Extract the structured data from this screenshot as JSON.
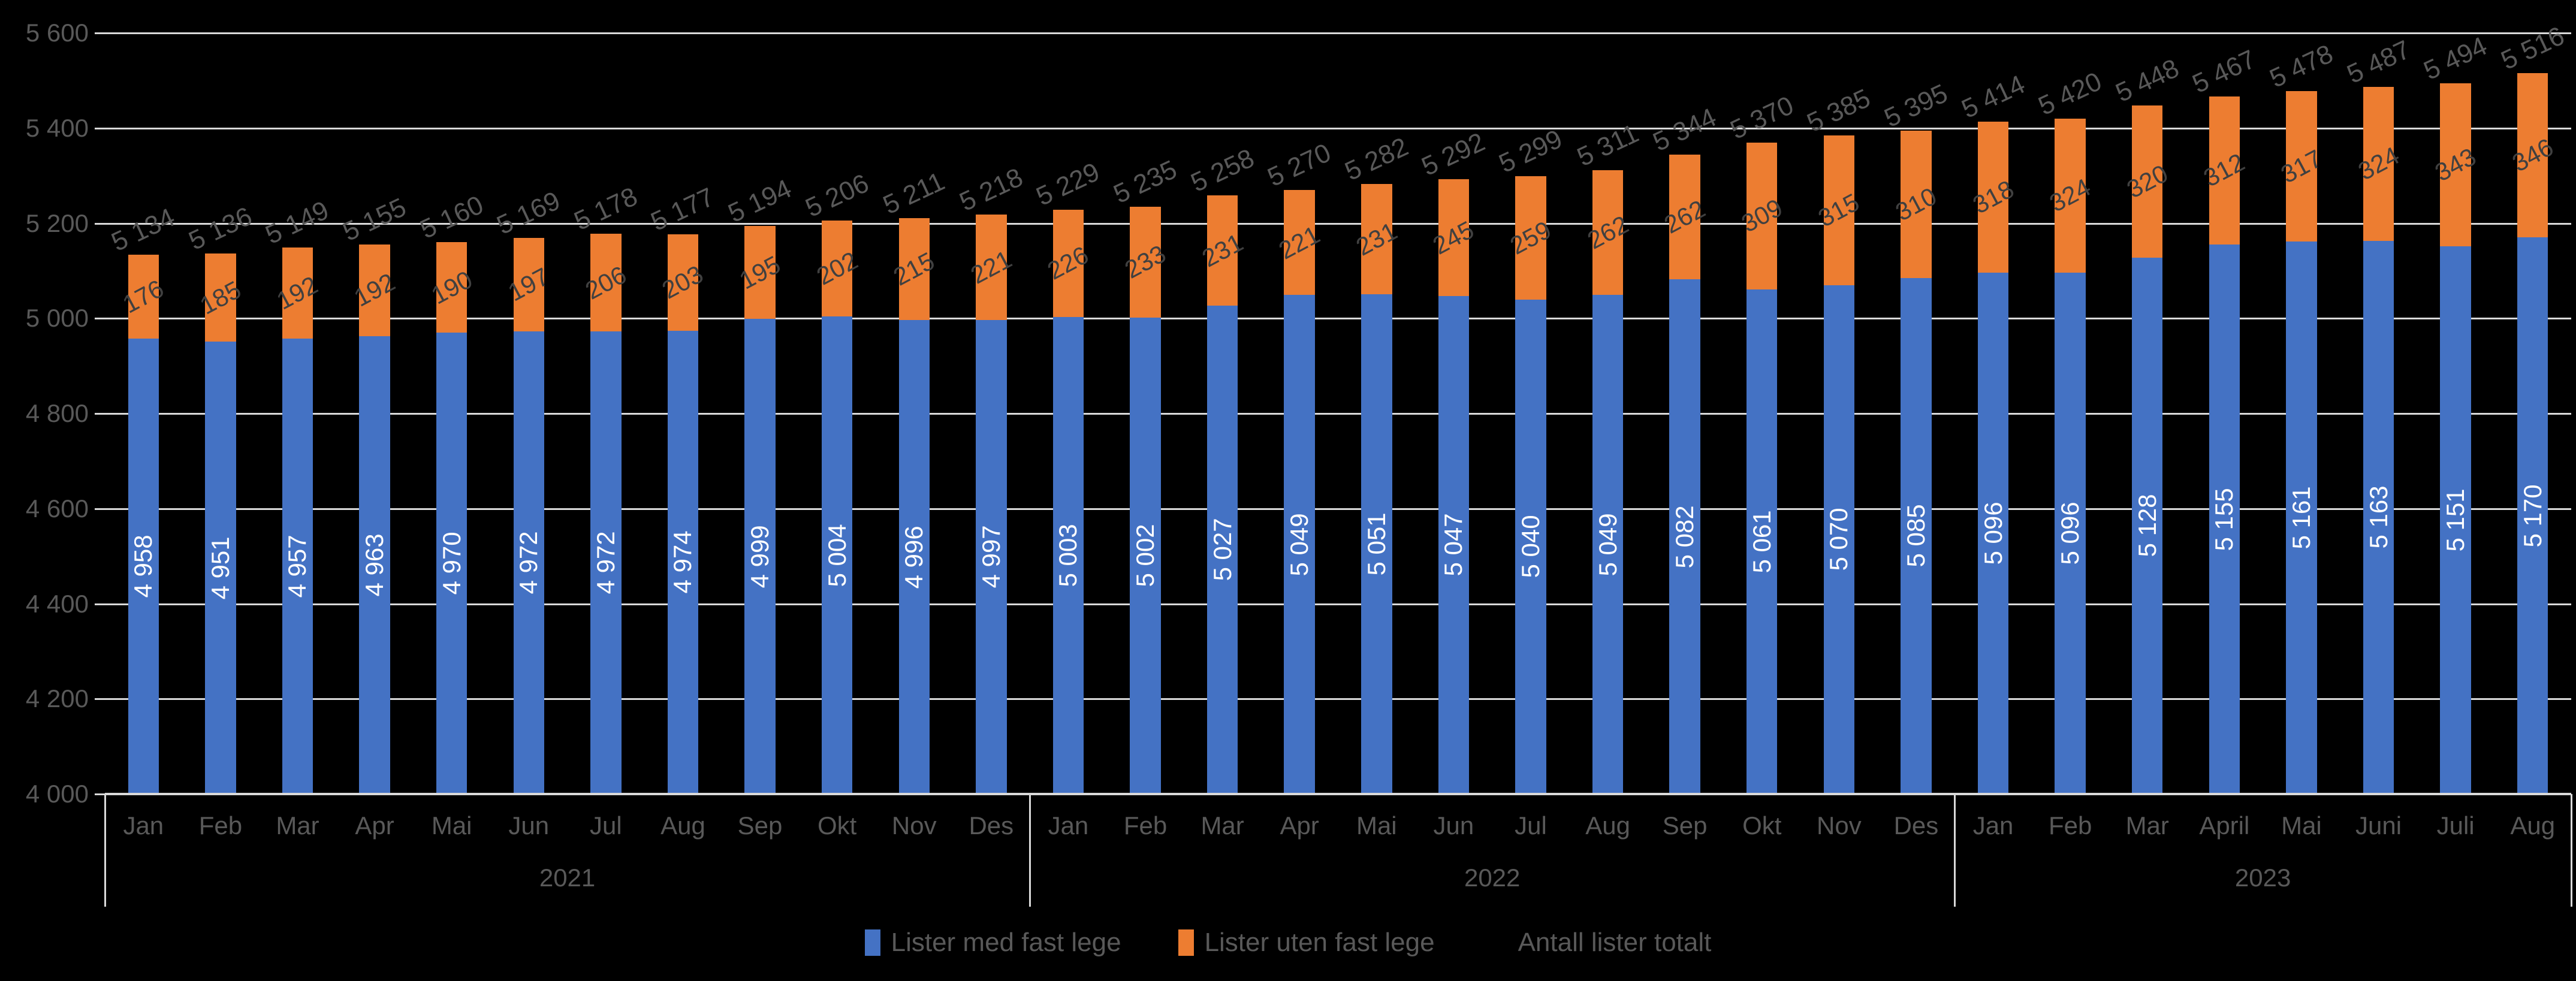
{
  "chart_data": {
    "type": "bar",
    "stacked": true,
    "title": "",
    "background": "#000000",
    "grid": true,
    "legend_position": "bottom",
    "number_format": "space-thousands",
    "y_axis": {
      "min": 4000,
      "max": 5600,
      "step": 200
    },
    "groups": [
      {
        "year": "2021",
        "months": [
          "Jan",
          "Feb",
          "Mar",
          "Apr",
          "Mai",
          "Jun",
          "Jul",
          "Aug",
          "Sep",
          "Okt",
          "Nov",
          "Des"
        ]
      },
      {
        "year": "2022",
        "months": [
          "Jan",
          "Feb",
          "Mar",
          "Apr",
          "Mai",
          "Jun",
          "Jul",
          "Aug",
          "Sep",
          "Okt",
          "Nov",
          "Des"
        ]
      },
      {
        "year": "2023",
        "months": [
          "Jan",
          "Feb",
          "Mar",
          "April",
          "Mai",
          "Juni",
          "Juli",
          "Aug"
        ]
      }
    ],
    "series": [
      {
        "name": "Lister med fast lege",
        "color": "#4472C4",
        "label_color": "#FFFFFF",
        "values": [
          4958,
          4951,
          4957,
          4963,
          4970,
          4972,
          4972,
          4974,
          4999,
          5004,
          4996,
          4997,
          5003,
          5002,
          5027,
          5049,
          5051,
          5047,
          5040,
          5049,
          5082,
          5061,
          5070,
          5085,
          5096,
          5096,
          5128,
          5155,
          5161,
          5163,
          5151,
          5170
        ]
      },
      {
        "name": "Lister uten fast lege",
        "color": "#ED7D31",
        "label_color": "#404040",
        "values": [
          176,
          185,
          192,
          192,
          190,
          197,
          206,
          203,
          195,
          202,
          215,
          221,
          226,
          233,
          231,
          221,
          231,
          245,
          259,
          262,
          262,
          309,
          315,
          310,
          318,
          324,
          320,
          312,
          317,
          324,
          343,
          346
        ]
      },
      {
        "name": "Antall lister totalt",
        "color": null,
        "label_color": "#595959",
        "values": [
          5134,
          5136,
          5149,
          5155,
          5160,
          5169,
          5178,
          5177,
          5194,
          5206,
          5211,
          5218,
          5229,
          5235,
          5258,
          5270,
          5282,
          5292,
          5299,
          5311,
          5344,
          5370,
          5385,
          5395,
          5414,
          5420,
          5448,
          5467,
          5478,
          5487,
          5494,
          5516
        ]
      }
    ],
    "colors": {
      "gridline": "#D9D9D9",
      "axis_line": "#D9D9D9",
      "axis_text": "#595959"
    }
  }
}
